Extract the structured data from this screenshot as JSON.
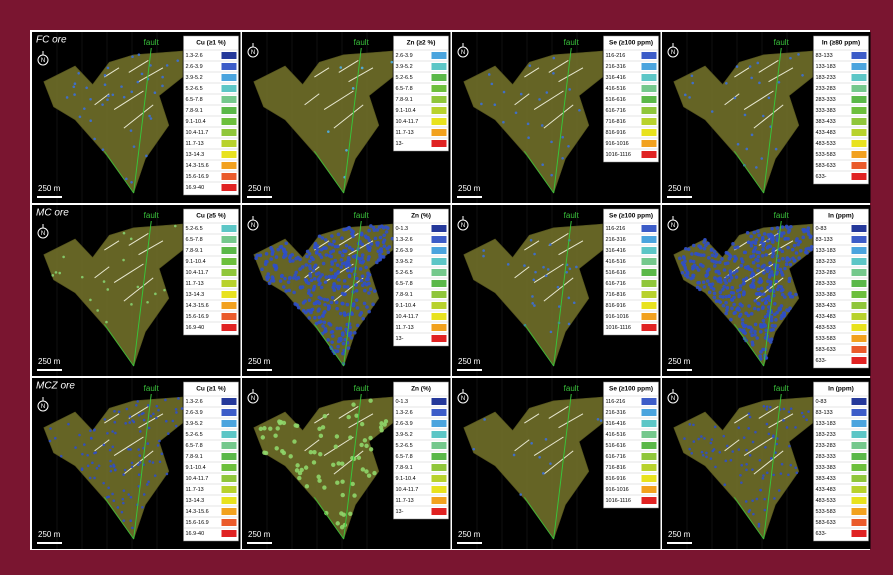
{
  "fault_label": "fault",
  "scale_label": "250 m",
  "north_label": "N",
  "rows": [
    {
      "label": "FC ore",
      "panels": [
        {
          "title": "Cu (≥1 %)",
          "labels": [
            "1.3-2.6",
            "2.6-3.9",
            "3.9-5.2",
            "5.2-6.5",
            "6.5-7.8",
            "7.8-9.1",
            "9.1-10.4",
            "10.4-11.7",
            "11.7-13",
            "13-14.3",
            "14.3-15.6",
            "15.6-16.9",
            "16.9-40"
          ],
          "colors": [
            "#24389a",
            "#3c5cc8",
            "#4aa4de",
            "#5cc6c6",
            "#74c88c",
            "#5ab848",
            "#6cbf3c",
            "#8fc63a",
            "#b8d22c",
            "#e8e21e",
            "#f2a11e",
            "#ea5a2a",
            "#e02222"
          ]
        },
        {
          "title": "Zn (≥2 %)",
          "labels": [
            "2.6-3.9",
            "3.9-5.2",
            "5.2-6.5",
            "6.5-7.8",
            "7.8-9.1",
            "9.1-10.4",
            "10.4-11.7",
            "11.7-13",
            "13-"
          ],
          "colors": [
            "#4aa4de",
            "#5cc6c6",
            "#5ab848",
            "#6cbf3c",
            "#8fc63a",
            "#b8d22c",
            "#e8e21e",
            "#f2a11e",
            "#e02222"
          ]
        },
        {
          "title": "Se (≥100 ppm)",
          "labels": [
            "116-216",
            "216-316",
            "316-416",
            "416-516",
            "516-616",
            "616-716",
            "716-816",
            "816-916",
            "916-1016",
            "1016-1116"
          ],
          "colors": [
            "#3c5cc8",
            "#4aa4de",
            "#5cc6c6",
            "#74c88c",
            "#5ab848",
            "#8fc63a",
            "#b8d22c",
            "#e8e21e",
            "#f2a11e",
            "#e02222"
          ]
        },
        {
          "title": "In (≥80 ppm)",
          "labels": [
            "83-133",
            "133-183",
            "183-233",
            "233-283",
            "283-333",
            "333-383",
            "383-433",
            "433-483",
            "483-533",
            "533-583",
            "583-633",
            "633-"
          ],
          "colors": [
            "#3c5cc8",
            "#4aa4de",
            "#5cc6c6",
            "#74c88c",
            "#5ab848",
            "#6cbf3c",
            "#8fc63a",
            "#b8d22c",
            "#e8e21e",
            "#f2a11e",
            "#ea5a2a",
            "#e02222"
          ]
        }
      ]
    },
    {
      "label": "MC ore",
      "panels": [
        {
          "title": "Cu (≥5 %)",
          "labels": [
            "5.2-6.5",
            "6.5-7.8",
            "7.8-9.1",
            "9.1-10.4",
            "10.4-11.7",
            "11.7-13",
            "13-14.3",
            "14.3-15.6",
            "15.6-16.9",
            "16.9-40"
          ],
          "colors": [
            "#5cc6c6",
            "#74c88c",
            "#5ab848",
            "#6cbf3c",
            "#8fc63a",
            "#b8d22c",
            "#e8e21e",
            "#f2a11e",
            "#ea5a2a",
            "#e02222"
          ]
        },
        {
          "title": "Zn (%)",
          "labels": [
            "0-1.3",
            "1.3-2.6",
            "2.6-3.9",
            "3.9-5.2",
            "5.2-6.5",
            "6.5-7.8",
            "7.8-9.1",
            "9.1-10.4",
            "10.4-11.7",
            "11.7-13",
            "13-"
          ],
          "colors": [
            "#24389a",
            "#3c5cc8",
            "#4aa4de",
            "#5cc6c6",
            "#74c88c",
            "#5ab848",
            "#8fc63a",
            "#b8d22c",
            "#e8e21e",
            "#f2a11e",
            "#e02222"
          ]
        },
        {
          "title": "Se (≥100 ppm)",
          "labels": [
            "116-216",
            "216-316",
            "316-416",
            "416-516",
            "516-616",
            "616-716",
            "716-816",
            "816-916",
            "916-1016",
            "1016-1116"
          ],
          "colors": [
            "#3c5cc8",
            "#4aa4de",
            "#5cc6c6",
            "#74c88c",
            "#5ab848",
            "#8fc63a",
            "#b8d22c",
            "#e8e21e",
            "#f2a11e",
            "#e02222"
          ]
        },
        {
          "title": "In (ppm)",
          "labels": [
            "0-83",
            "83-133",
            "133-183",
            "183-233",
            "233-283",
            "283-333",
            "333-383",
            "383-433",
            "433-483",
            "483-533",
            "533-583",
            "583-633",
            "633-"
          ],
          "colors": [
            "#24389a",
            "#3c5cc8",
            "#4aa4de",
            "#5cc6c6",
            "#74c88c",
            "#5ab848",
            "#6cbf3c",
            "#8fc63a",
            "#b8d22c",
            "#e8e21e",
            "#f2a11e",
            "#ea5a2a",
            "#e02222"
          ]
        }
      ]
    },
    {
      "label": "MCZ ore",
      "panels": [
        {
          "title": "Cu (≥1 %)",
          "labels": [
            "1.3-2.6",
            "2.6-3.9",
            "3.9-5.2",
            "5.2-6.5",
            "6.5-7.8",
            "7.8-9.1",
            "9.1-10.4",
            "10.4-11.7",
            "11.7-13",
            "13-14.3",
            "14.3-15.6",
            "15.6-16.9",
            "16.9-40"
          ],
          "colors": [
            "#24389a",
            "#3c5cc8",
            "#4aa4de",
            "#5cc6c6",
            "#74c88c",
            "#5ab848",
            "#6cbf3c",
            "#8fc63a",
            "#b8d22c",
            "#e8e21e",
            "#f2a11e",
            "#ea5a2a",
            "#e02222"
          ]
        },
        {
          "title": "Zn (%)",
          "labels": [
            "0-1.3",
            "1.3-2.6",
            "2.6-3.9",
            "3.9-5.2",
            "5.2-6.5",
            "6.5-7.8",
            "7.8-9.1",
            "9.1-10.4",
            "10.4-11.7",
            "11.7-13",
            "13-"
          ],
          "colors": [
            "#24389a",
            "#3c5cc8",
            "#4aa4de",
            "#5cc6c6",
            "#74c88c",
            "#5ab848",
            "#8fc63a",
            "#b8d22c",
            "#e8e21e",
            "#f2a11e",
            "#e02222"
          ]
        },
        {
          "title": "Se (≥100 ppm)",
          "labels": [
            "116-216",
            "216-316",
            "316-416",
            "416-516",
            "516-616",
            "616-716",
            "716-816",
            "816-916",
            "916-1016",
            "1016-1116"
          ],
          "colors": [
            "#3c5cc8",
            "#4aa4de",
            "#5cc6c6",
            "#74c88c",
            "#5ab848",
            "#8fc63a",
            "#b8d22c",
            "#e8e21e",
            "#f2a11e",
            "#e02222"
          ]
        },
        {
          "title": "In (ppm)",
          "labels": [
            "0-83",
            "83-133",
            "133-183",
            "183-233",
            "233-283",
            "283-333",
            "333-383",
            "383-433",
            "433-483",
            "483-533",
            "533-583",
            "583-633",
            "633-"
          ],
          "colors": [
            "#24389a",
            "#3c5cc8",
            "#4aa4de",
            "#5cc6c6",
            "#74c88c",
            "#5ab848",
            "#6cbf3c",
            "#8fc63a",
            "#b8d22c",
            "#e8e21e",
            "#f2a11e",
            "#ea5a2a",
            "#e02222"
          ]
        }
      ]
    }
  ]
}
